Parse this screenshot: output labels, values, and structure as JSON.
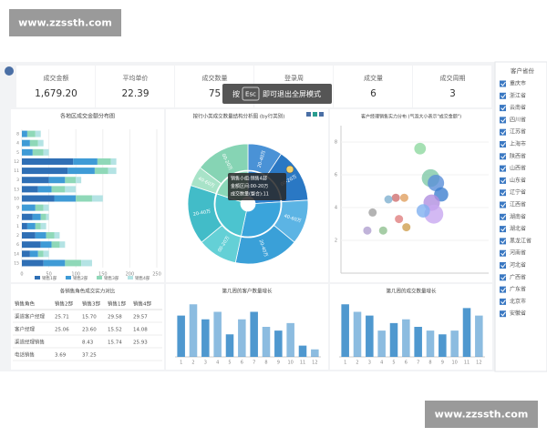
{
  "watermarks": [
    "www.zzssth.com",
    "www.zzssth.com"
  ],
  "kpis": [
    {
      "label": "成交金额",
      "value": "1,679.20"
    },
    {
      "label": "平均单价",
      "value": "22.39"
    },
    {
      "label": "成交数量",
      "value": "75"
    },
    {
      "label": "登录周"
    },
    {
      "label": "成交量",
      "value": "6"
    },
    {
      "label": "成交周期",
      "value": "3"
    }
  ],
  "overlay": {
    "prefix": "按",
    "key": "Esc",
    "text": "即可退出全屏模式"
  },
  "province_filter": {
    "title": "客户省份",
    "items": [
      "重庆市",
      "浙江省",
      "云南省",
      "四川省",
      "江苏省",
      "上海市",
      "陕西省",
      "山西省",
      "山东省",
      "辽宁省",
      "江西省",
      "湖南省",
      "湖北省",
      "黑龙江省",
      "河南省",
      "河北省",
      "广西省",
      "广东省",
      "北京市",
      "安徽省"
    ]
  },
  "table": {
    "title": "各销售角色成交实力对比",
    "columns": [
      "销售角色",
      "销售2部",
      "销售3部",
      "销售1部",
      "销售4部"
    ],
    "rows": [
      [
        "渠道客户经理",
        "25.71",
        "15.70",
        "29.58",
        "29.57"
      ],
      [
        "客户经理",
        "25.06",
        "23.60",
        "15.52",
        "14.08"
      ],
      [
        "渠道经理销售",
        null,
        "8.43",
        "15.74",
        "25.93"
      ],
      [
        "电话销售",
        "3.69",
        "37.25",
        null,
        null
      ]
    ]
  },
  "chart_data": [
    {
      "type": "bar",
      "orientation": "horizontal",
      "stacked": true,
      "title": "各地区成交金额分布图",
      "categories": [
        "8",
        "4",
        "5",
        "12",
        "11",
        "3",
        "13",
        "10",
        "9",
        "7",
        "1",
        "2",
        "6",
        "14",
        "15"
      ],
      "series": [
        {
          "name": "销售1部",
          "color": "#2f6fb5",
          "values": [
            0,
            0,
            0,
            95,
            85,
            50,
            30,
            60,
            0,
            20,
            10,
            25,
            35,
            15,
            40
          ]
        },
        {
          "name": "销售2部",
          "color": "#3f9bd6",
          "values": [
            10,
            15,
            20,
            45,
            50,
            30,
            25,
            40,
            25,
            15,
            15,
            20,
            20,
            15,
            40
          ]
        },
        {
          "name": "销售3部",
          "color": "#8fd8b8",
          "values": [
            15,
            15,
            20,
            25,
            25,
            20,
            25,
            30,
            15,
            10,
            10,
            15,
            15,
            10,
            30
          ]
        },
        {
          "name": "销售4部",
          "color": "#b4e3e4",
          "values": [
            10,
            10,
            10,
            10,
            15,
            10,
            20,
            20,
            10,
            5,
            10,
            10,
            10,
            10,
            20
          ]
        }
      ],
      "xlim": [
        0,
        250
      ],
      "xticks": [
        0,
        50,
        100,
        150,
        200,
        250
      ],
      "legend": "bottom"
    },
    {
      "type": "sunburst",
      "title": "按行小类成交数量结构分析图 (by行类别)",
      "inner": {
        "values": [
          18,
          22,
          20,
          15
        ],
        "colors": [
          "#2e7fcc",
          "#3aa4db",
          "#4cc4cf",
          "#8ad7b8"
        ]
      },
      "outer": {
        "values": [
          7,
          11,
          9,
          13,
          8,
          12,
          4,
          11
        ],
        "labels": [
          "20-40万",
          "00-20万",
          "40-60万",
          "20-40万",
          "00-20万",
          "20-40万",
          "40-60万",
          "00-20万"
        ],
        "colors": [
          "#4a92d6",
          "#2a78c4",
          "#5cb4e4",
          "#3aa0d8",
          "#64d0d6",
          "#42bcc8",
          "#a8e3c8",
          "#86d4b4"
        ]
      },
      "tooltip": [
        "销售小组:销售4部",
        "金额区间:00-20万",
        "成交数量(整合):11"
      ]
    },
    {
      "type": "scatter",
      "title": "客户经理销售实力分布 (气泡大小表示\"成交金额\")",
      "x": [
        7.5,
        8.5,
        9,
        9.5,
        8.6,
        8.8,
        7.8,
        6,
        5.2,
        4.5,
        3,
        5.5,
        6.2,
        4,
        2.5
      ],
      "values": [
        7.6,
        5.8,
        5.5,
        4.8,
        4.3,
        3.6,
        3.8,
        4.6,
        4.6,
        4.5,
        3.7,
        3.3,
        2.8,
        2.6,
        2.6
      ],
      "sizes": [
        6,
        14,
        12,
        9,
        12,
        16,
        8,
        3,
        3,
        3,
        3,
        3,
        3,
        3,
        3
      ],
      "colors": [
        "#8fd8a0",
        "#7fc9a8",
        "#5a8fd8",
        "#3f7fd0",
        "#b08fe0",
        "#c8a8f0",
        "#7fb0f0",
        "#e0a060",
        "#d07070",
        "#80b0d0",
        "#a0a0a0",
        "#e08080",
        "#d0a050",
        "#90c090",
        "#b0a0d0"
      ],
      "xlim": [
        0,
        14
      ],
      "ylim": [
        0,
        9
      ],
      "yticks": [
        2,
        4,
        6,
        8
      ],
      "grid": true
    },
    {
      "type": "bar",
      "orientation": "vertical",
      "title": "第几周的客户数量增长",
      "categories": [
        "1",
        "2",
        "3",
        "4",
        "5",
        "6",
        "7",
        "8",
        "9",
        "10",
        "11",
        "12"
      ],
      "values": [
        11,
        14,
        10,
        12,
        6,
        10,
        12,
        8,
        7,
        9,
        3,
        2
      ],
      "color": "#4f98cf",
      "ylim": [
        0,
        16
      ]
    },
    {
      "type": "bar",
      "orientation": "vertical",
      "title": "第几周的成交数量增长",
      "categories": [
        "1",
        "2",
        "3",
        "4",
        "5",
        "6",
        "7",
        "8",
        "9",
        "10",
        "11",
        "12"
      ],
      "values": [
        14,
        12,
        11,
        7,
        9,
        10,
        8,
        7,
        6,
        7,
        13,
        11
      ],
      "color": "#4f98cf",
      "ylim": [
        0,
        16
      ]
    }
  ]
}
